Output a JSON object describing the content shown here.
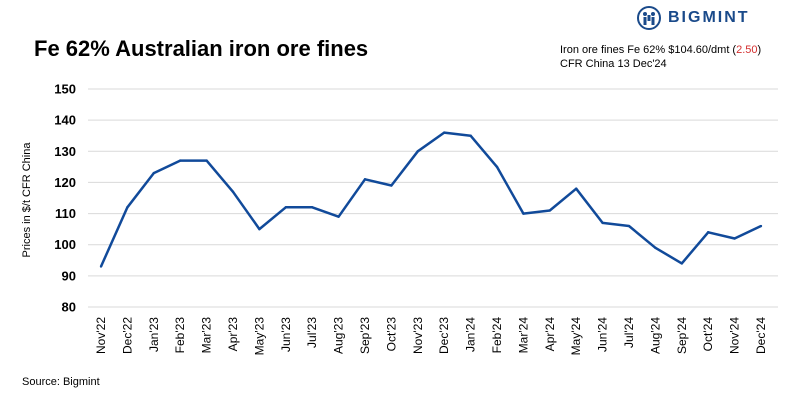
{
  "header": {
    "title": "Fe 62% Australian iron ore fines",
    "logo_text": "BIGMINT",
    "info_line1_prefix": "Iron ore fines Fe 62% $104.60/dmt (",
    "info_change": "2.50",
    "info_line1_suffix": ")",
    "info_line2": "CFR China 13  Dec'24"
  },
  "footer": {
    "source": "Source: Bigmint"
  },
  "colors": {
    "line": "#114a9a",
    "grid": "#d9d9d9",
    "logo": "#1a4a8a",
    "change": "#d32f2f"
  },
  "chart_data": {
    "type": "line",
    "title": "Fe 62% Australian iron ore fines",
    "ylabel": "Prices in $/t CFR China",
    "xlabel": "",
    "ylim": [
      80,
      150
    ],
    "yticks": [
      80,
      90,
      100,
      110,
      120,
      130,
      140,
      150
    ],
    "grid": true,
    "categories": [
      "Nov'22",
      "Dec'22",
      "Jan'23",
      "Feb'23",
      "Mar'23",
      "Apr'23",
      "May'23",
      "Jun'23",
      "Jul'23",
      "Aug'23",
      "Sep'23",
      "Oct'23",
      "Nov'23",
      "Dec'23",
      "Jan'24",
      "Feb'24",
      "Mar'24",
      "Apr'24",
      "May'24",
      "Jun'24",
      "Jul'24",
      "Aug'24",
      "Sep'24",
      "Oct'24",
      "Nov'24",
      "Dec'24"
    ],
    "series": [
      {
        "values": [
          93,
          112,
          123,
          127,
          127,
          117,
          105,
          112,
          112,
          109,
          121,
          119,
          130,
          136,
          135,
          125,
          110,
          111,
          118,
          107,
          106,
          99,
          94,
          104,
          102,
          106
        ]
      }
    ]
  }
}
